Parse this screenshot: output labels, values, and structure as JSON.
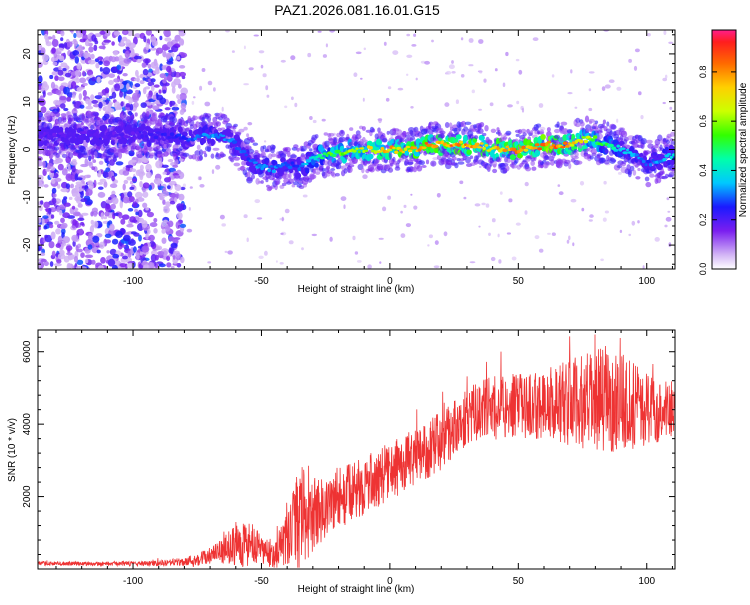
{
  "chart_data": [
    {
      "type": "heatmap",
      "title": "PAZ1.2026.081.16.01.G15",
      "xlabel": "Height of straight line (km)",
      "ylabel": "Frequency (Hz)",
      "xlim": [
        -137,
        111
      ],
      "ylim": [
        -25,
        25
      ],
      "xticks": [
        -100,
        -50,
        0,
        50,
        100
      ],
      "yticks": [
        -20,
        -10,
        0,
        10,
        20
      ],
      "xtick_labels": [
        "-100",
        "-50",
        "0",
        "50",
        "100"
      ],
      "ytick_labels": [
        "-20",
        "-10",
        "0",
        "10",
        "20"
      ],
      "colorbar": {
        "label": "Normalized spectral amplitude",
        "range": [
          0,
          0.97
        ],
        "ticks": [
          0,
          0.2,
          0.4,
          0.6,
          0.8
        ],
        "tick_labels": [
          "0.0",
          "0.2",
          "0.4",
          "0.6",
          "0.8"
        ]
      },
      "ridge": {
        "x": [
          -137,
          -120,
          -100,
          -85,
          -78,
          -70,
          -65,
          -60,
          -55,
          -50,
          -45,
          -40,
          -35,
          -30,
          -25,
          -20,
          -15,
          -10,
          -5,
          0,
          5,
          10,
          15,
          20,
          25,
          30,
          35,
          40,
          45,
          50,
          55,
          60,
          65,
          70,
          75,
          80,
          85,
          90,
          95,
          100,
          105,
          111
        ],
        "y": [
          3,
          3,
          3,
          3,
          2,
          3,
          3,
          1,
          -2,
          -4,
          -4,
          -3,
          -4,
          -2,
          -1,
          -1,
          0,
          0,
          0,
          0,
          0,
          0,
          1,
          1,
          1,
          1,
          1,
          0,
          0,
          0,
          0,
          1,
          1,
          1,
          2,
          2,
          1,
          0,
          -1,
          -3,
          -2,
          -1
        ],
        "amplitude": [
          0.2,
          0.2,
          0.2,
          0.25,
          0.3,
          0.35,
          0.35,
          0.3,
          0.3,
          0.35,
          0.35,
          0.3,
          0.3,
          0.45,
          0.55,
          0.6,
          0.65,
          0.7,
          0.75,
          0.8,
          0.8,
          0.82,
          0.85,
          0.85,
          0.85,
          0.85,
          0.8,
          0.8,
          0.8,
          0.85,
          0.85,
          0.9,
          0.9,
          0.8,
          0.7,
          0.6,
          0.5,
          0.4,
          0.35,
          0.3,
          0.35,
          0.4
        ]
      }
    },
    {
      "type": "line",
      "xlabel": "Height of straight line (km)",
      "ylabel": "SNR (10 * v/v)",
      "xlim": [
        -137,
        111
      ],
      "ylim": [
        0,
        6600
      ],
      "xticks": [
        -100,
        -50,
        0,
        50,
        100
      ],
      "yticks": [
        2000,
        4000,
        6000
      ],
      "xtick_labels": [
        "-100",
        "-50",
        "0",
        "50",
        "100"
      ],
      "ytick_labels": [
        "2000",
        "4000",
        "6000"
      ],
      "color": "#ee3333",
      "series": [
        {
          "name": "SNR",
          "x": [
            -137,
            -120,
            -100,
            -90,
            -80,
            -70,
            -65,
            -60,
            -55,
            -50,
            -45,
            -40,
            -35,
            -30,
            -25,
            -20,
            -15,
            -10,
            -5,
            0,
            5,
            10,
            15,
            20,
            25,
            30,
            35,
            40,
            45,
            50,
            55,
            60,
            65,
            70,
            75,
            80,
            85,
            90,
            95,
            100,
            105,
            111
          ],
          "mean": [
            150,
            150,
            150,
            150,
            200,
            350,
            500,
            700,
            700,
            500,
            400,
            800,
            1400,
            1500,
            1700,
            2000,
            2100,
            2300,
            2500,
            2700,
            2900,
            3100,
            3300,
            3600,
            3900,
            4200,
            4400,
            4450,
            4500,
            4500,
            4500,
            4550,
            4600,
            4600,
            4600,
            4650,
            4700,
            4700,
            4500,
            4400,
            4400,
            4450
          ],
          "spread": [
            60,
            60,
            60,
            80,
            120,
            250,
            350,
            600,
            700,
            400,
            400,
            800,
            1500,
            1000,
            900,
            900,
            800,
            800,
            800,
            800,
            800,
            800,
            800,
            800,
            800,
            800,
            800,
            900,
            900,
            900,
            900,
            1000,
            1100,
            1200,
            1300,
            1400,
            1500,
            1400,
            1200,
            1000,
            900,
            800
          ]
        }
      ]
    }
  ]
}
